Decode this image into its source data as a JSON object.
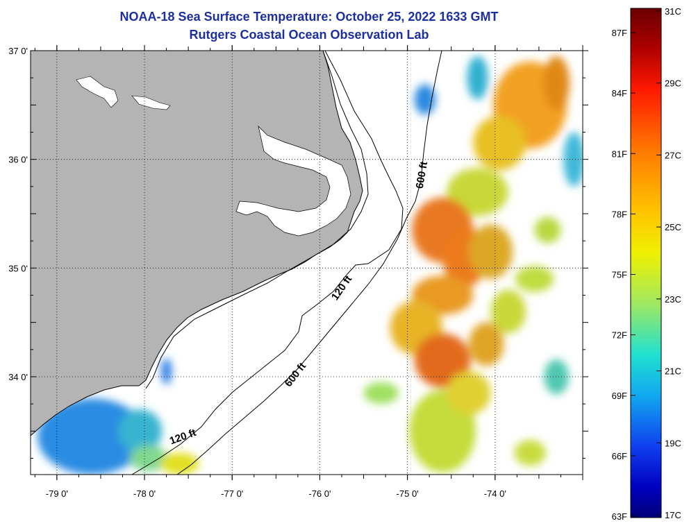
{
  "title": {
    "line1": "NOAA-18 Sea Surface Temperature:  October 25, 2022 1633 GMT",
    "line2": "Rutgers Coastal Ocean Observation Lab"
  },
  "map": {
    "lon_range": [
      -79.3,
      -73.0
    ],
    "lat_range": [
      33.1,
      37.0
    ],
    "lon_ticks": [
      {
        "value": -79,
        "label": "-79 0'"
      },
      {
        "value": -78,
        "label": "-78 0'"
      },
      {
        "value": -77,
        "label": "-77 0'"
      },
      {
        "value": -76,
        "label": "-76 0'"
      },
      {
        "value": -75,
        "label": "-75 0'"
      },
      {
        "value": -74,
        "label": "-74 0'"
      }
    ],
    "lat_ticks": [
      {
        "value": 37,
        "label": "37 0'"
      },
      {
        "value": 36,
        "label": "36 0'"
      },
      {
        "value": 35,
        "label": "35 0'"
      },
      {
        "value": 34,
        "label": "34 0'"
      }
    ],
    "contour_labels": [
      {
        "text": "600 ft",
        "lon": -74.8,
        "lat": 35.85
      },
      {
        "text": "120 ft",
        "lon": -75.72,
        "lat": 34.8
      },
      {
        "text": "600 ft",
        "lon": -76.25,
        "lat": 34.0
      },
      {
        "text": "120 ft",
        "lon": -77.55,
        "lat": 33.42
      }
    ],
    "colors": {
      "land": "#b4b4b4",
      "ocean_cloud": "#ffffff",
      "contour": "#000000"
    }
  },
  "colorbar": {
    "fahrenheit_labels": [
      "87F",
      "84F",
      "81F",
      "78F",
      "75F",
      "72F",
      "69F",
      "66F",
      "63F"
    ],
    "celsius_labels": [
      "31C",
      "29C",
      "27C",
      "25C",
      "23C",
      "21C",
      "19C",
      "17C"
    ],
    "range_c": [
      17,
      31
    ]
  },
  "sst_patches": [
    {
      "lon": -73.6,
      "lat": 36.5,
      "rx": 0.42,
      "ry": 0.4,
      "color": "#f2a020"
    },
    {
      "lon": -73.95,
      "lat": 36.15,
      "rx": 0.3,
      "ry": 0.25,
      "color": "#e8c020"
    },
    {
      "lon": -74.2,
      "lat": 36.75,
      "rx": 0.12,
      "ry": 0.2,
      "color": "#30b0d0"
    },
    {
      "lon": -74.8,
      "lat": 36.55,
      "rx": 0.12,
      "ry": 0.14,
      "color": "#2c8ae0"
    },
    {
      "lon": -73.3,
      "lat": 36.7,
      "rx": 0.15,
      "ry": 0.25,
      "color": "#e08818"
    },
    {
      "lon": -74.2,
      "lat": 35.7,
      "rx": 0.35,
      "ry": 0.22,
      "color": "#c8d838"
    },
    {
      "lon": -74.6,
      "lat": 35.35,
      "rx": 0.35,
      "ry": 0.3,
      "color": "#e87820"
    },
    {
      "lon": -74.35,
      "lat": 35.1,
      "rx": 0.25,
      "ry": 0.28,
      "color": "#ec7a1e"
    },
    {
      "lon": -74.05,
      "lat": 35.15,
      "rx": 0.25,
      "ry": 0.25,
      "color": "#dca828"
    },
    {
      "lon": -73.55,
      "lat": 34.9,
      "rx": 0.22,
      "ry": 0.12,
      "color": "#c0dc40"
    },
    {
      "lon": -74.6,
      "lat": 34.75,
      "rx": 0.35,
      "ry": 0.18,
      "color": "#e89a20"
    },
    {
      "lon": -74.9,
      "lat": 34.45,
      "rx": 0.3,
      "ry": 0.25,
      "color": "#e8b428"
    },
    {
      "lon": -74.6,
      "lat": 34.15,
      "rx": 0.32,
      "ry": 0.25,
      "color": "#e26a1c"
    },
    {
      "lon": -74.1,
      "lat": 34.3,
      "rx": 0.2,
      "ry": 0.2,
      "color": "#e0a428"
    },
    {
      "lon": -73.85,
      "lat": 34.6,
      "rx": 0.2,
      "ry": 0.2,
      "color": "#c8d838"
    },
    {
      "lon": -74.6,
      "lat": 33.5,
      "rx": 0.38,
      "ry": 0.38,
      "color": "#c4dc3a"
    },
    {
      "lon": -74.3,
      "lat": 33.85,
      "rx": 0.25,
      "ry": 0.2,
      "color": "#e0d030"
    },
    {
      "lon": -75.3,
      "lat": 33.85,
      "rx": 0.2,
      "ry": 0.1,
      "color": "#a0e060"
    },
    {
      "lon": -73.6,
      "lat": 33.3,
      "rx": 0.18,
      "ry": 0.12,
      "color": "#c8dc40"
    },
    {
      "lon": -73.3,
      "lat": 34.0,
      "rx": 0.14,
      "ry": 0.16,
      "color": "#50c8b0"
    },
    {
      "lon": -73.1,
      "lat": 36.0,
      "rx": 0.12,
      "ry": 0.25,
      "color": "#40b8d8"
    },
    {
      "lon": -73.4,
      "lat": 35.35,
      "rx": 0.15,
      "ry": 0.12,
      "color": "#b8d840"
    },
    {
      "lon": -78.6,
      "lat": 33.45,
      "rx": 0.62,
      "ry": 0.35,
      "color": "#2a8ce2"
    },
    {
      "lon": -78.05,
      "lat": 33.5,
      "rx": 0.25,
      "ry": 0.2,
      "color": "#38b4d0"
    },
    {
      "lon": -77.95,
      "lat": 33.25,
      "rx": 0.22,
      "ry": 0.12,
      "color": "#80d890"
    },
    {
      "lon": -77.6,
      "lat": 33.2,
      "rx": 0.22,
      "ry": 0.1,
      "color": "#e2e020"
    },
    {
      "lon": -77.75,
      "lat": 34.05,
      "rx": 0.06,
      "ry": 0.12,
      "color": "#2c7ee4"
    }
  ]
}
